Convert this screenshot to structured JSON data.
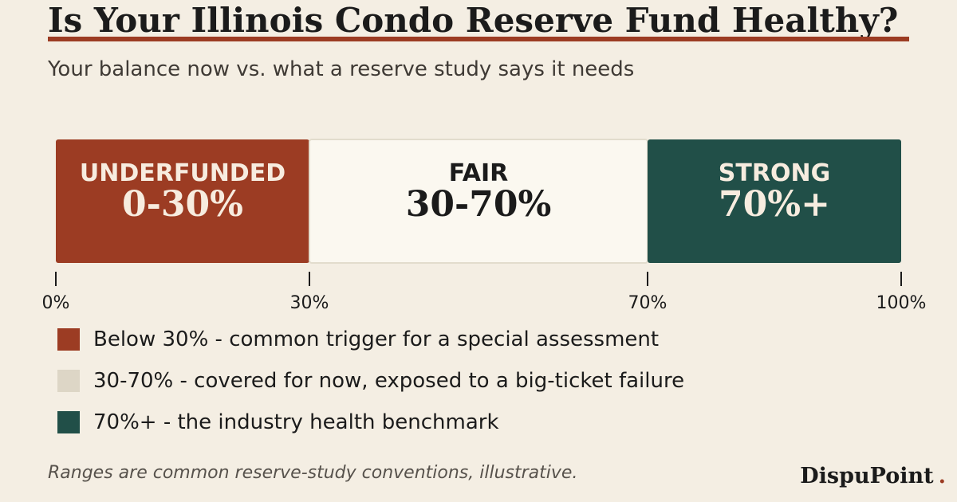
{
  "header": {
    "title": "Is Your Illinois Condo Reserve Fund Healthy?",
    "subtitle": "Your balance now vs. what a reserve study says it needs"
  },
  "chart_data": {
    "type": "bar",
    "orientation": "horizontal-segmented",
    "title": "Is Your Illinois Condo Reserve Fund Healthy?",
    "subtitle": "Your balance now vs. what a reserve study says it needs",
    "xlim": [
      0,
      100
    ],
    "ticks": [
      {
        "value": 0,
        "label": "0%"
      },
      {
        "value": 30,
        "label": "30%"
      },
      {
        "value": 70,
        "label": "70%"
      },
      {
        "value": 100,
        "label": "100%"
      }
    ],
    "segments": [
      {
        "name": "UNDERFUNDED",
        "range_label": "0-30%",
        "start": 0,
        "end": 30,
        "color": "#9c3c23",
        "text_color": "#f7ecdf"
      },
      {
        "name": "FAIR",
        "range_label": "30-70%",
        "start": 30,
        "end": 70,
        "color": "#fbf8f0",
        "text_color": "#1b1b1b"
      },
      {
        "name": "STRONG",
        "range_label": "70%+",
        "start": 70,
        "end": 100,
        "color": "#214f48",
        "text_color": "#f7ecdf"
      }
    ],
    "legend": [
      {
        "color": "#9c3c23",
        "text": "Below 30% - common trigger for a special assessment"
      },
      {
        "color": "#ddd6c6",
        "text": "30-70% - covered for now, exposed to a big-ticket failure"
      },
      {
        "color": "#214f48",
        "text": "70%+ - the industry health benchmark"
      }
    ],
    "legend_position": "bottom-left",
    "grid": false
  },
  "footnote": "Ranges are common reserve-study conventions, illustrative.",
  "brand": {
    "name": "DispuPoint",
    "dot": "."
  }
}
